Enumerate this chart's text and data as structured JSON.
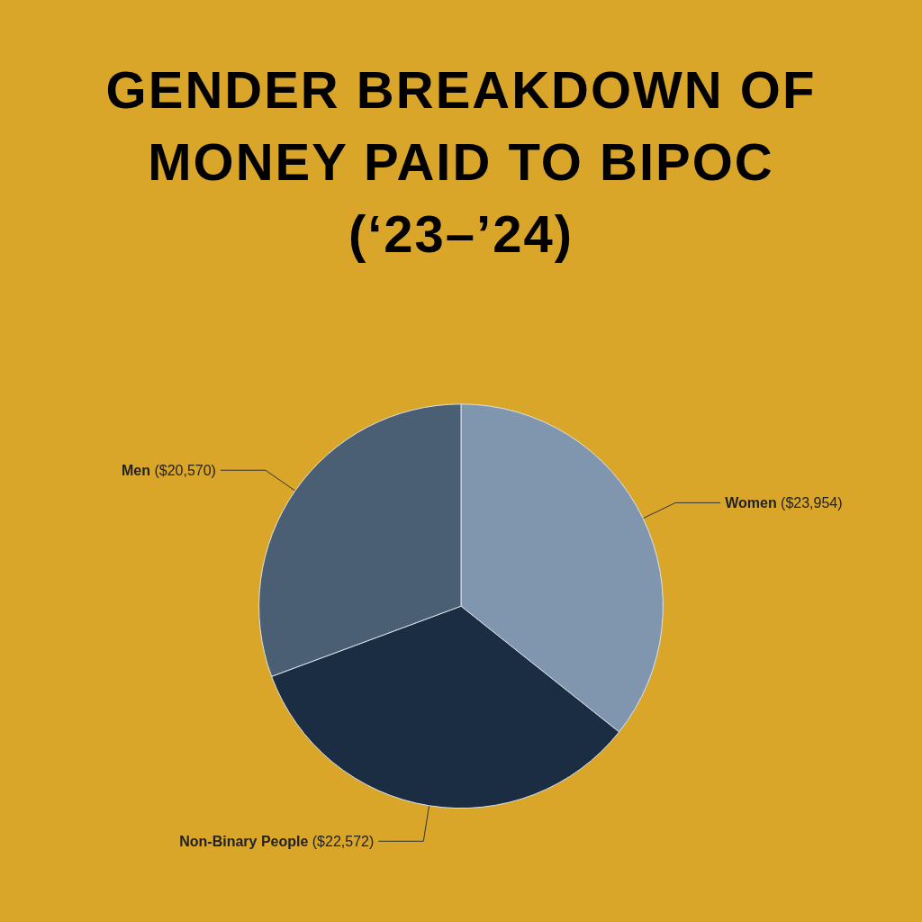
{
  "chart_data": {
    "type": "pie",
    "title": "GENDER BREAKDOWN OF MONEY PAID TO BIPOC (‘23–’24)",
    "categories": [
      "Women",
      "Non-Binary People",
      "Men"
    ],
    "values": [
      23954,
      22572,
      20570
    ],
    "value_labels": [
      "($23,954)",
      "($22,572)",
      "($20,570)"
    ],
    "colors": [
      "#8096ae",
      "#1b2d42",
      "#4a5f74"
    ],
    "legend": false
  }
}
